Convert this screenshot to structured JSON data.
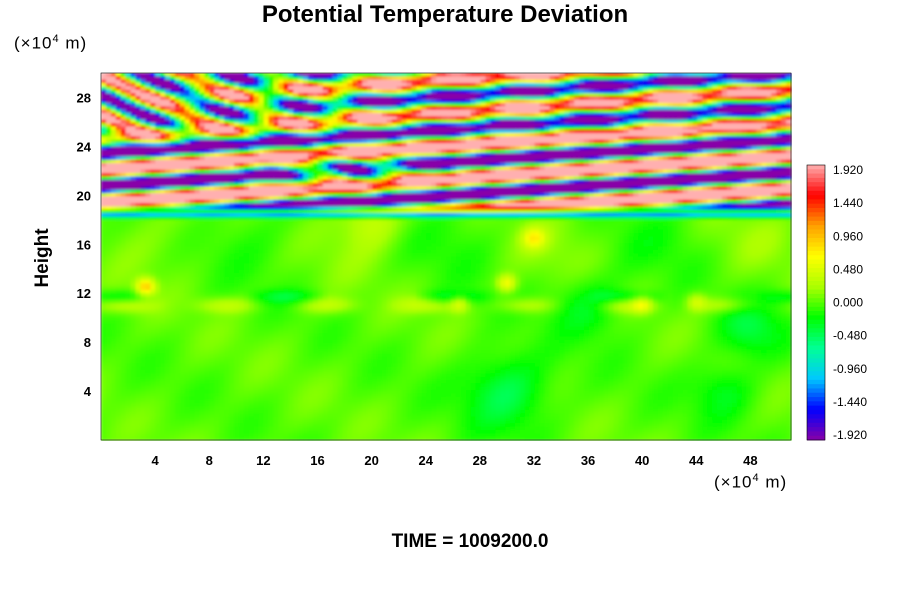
{
  "chart_data": {
    "type": "heatmap",
    "title": "Potential Temperature Deviation",
    "ylabel": "Height",
    "x_unit": {
      "prefix": "(×10",
      "exp": "4",
      "suffix": " m)"
    },
    "y_unit": {
      "prefix": "(×10",
      "exp": "4",
      "suffix": " m)"
    },
    "xlim": [
      0,
      51
    ],
    "ylim": [
      0,
      30
    ],
    "x_ticks": [
      4,
      8,
      12,
      16,
      20,
      24,
      28,
      32,
      36,
      40,
      44,
      48
    ],
    "y_ticks": [
      4,
      8,
      12,
      16,
      20,
      24,
      28
    ],
    "colorbar": {
      "min": -1.92,
      "max": 1.92,
      "labels": [
        "1.920",
        "1.440",
        "0.960",
        "0.480",
        "0.000",
        "-0.480",
        "-0.960",
        "-1.440",
        "-1.920"
      ],
      "stops": [
        "#8800a8",
        "#0000ff",
        "#00c8ff",
        "#00ff96",
        "#00ff00",
        "#aaff00",
        "#ffff00",
        "#ffa000",
        "#ff0000",
        "#ffb0b0"
      ]
    },
    "regions": [
      {
        "y_range": [
          0,
          19
        ],
        "description": "near-zero deviation, mostly 0.000 with scattered small positive and negative anomalies"
      },
      {
        "y_range": [
          19,
          30
        ],
        "description": "strong alternating positive (>1.920) and negative (<-1.920) tilted wave bands"
      }
    ],
    "time_label": "TIME = 1009200.0"
  }
}
